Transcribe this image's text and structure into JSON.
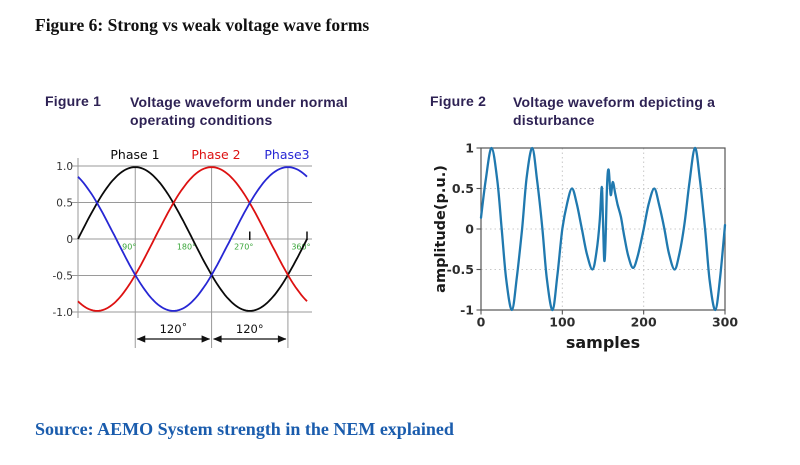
{
  "page": {
    "title": "Figure 6: Strong vs weak voltage wave forms",
    "title_color": "#111111",
    "source": "Source: AEMO System strength in the NEM explained",
    "source_color": "#1a5cad",
    "background": "#ffffff"
  },
  "chart_data": [
    {
      "type": "line",
      "figure_label": "Figure 1",
      "title_lines": [
        "Voltage waveform under normal",
        "operating conditions"
      ],
      "header_color": "#2e2254",
      "x_unit": "degrees",
      "xlim": [
        0,
        360
      ],
      "ylim": [
        -1.0,
        1.0
      ],
      "grid": true,
      "grid_color": "#9a9a9a",
      "tick_label_color": "#333333",
      "xtick_color": "#3aa63a",
      "yticks": [
        {
          "label": "1.0",
          "value": 1.0
        },
        {
          "label": "0.5",
          "value": 0.5
        },
        {
          "label": "0",
          "value": 0
        },
        {
          "label": "-0.5",
          "value": -0.5
        },
        {
          "label": "-1.0",
          "value": -1.0
        }
      ],
      "xticks": [
        {
          "label": "90°",
          "value": 90
        },
        {
          "label": "180°",
          "value": 180
        },
        {
          "label": "270°",
          "value": 270
        },
        {
          "label": "360°",
          "value": 360
        }
      ],
      "series": [
        {
          "name": "Phase 1",
          "color": "#0a0a0a",
          "function": "sin",
          "phase_deg": 0,
          "amplitude": 1,
          "label_at_deg": 90
        },
        {
          "name": "Phase 2",
          "color": "#dd1111",
          "function": "sin",
          "phase_deg": -120,
          "amplitude": 1,
          "label_at_deg": 215
        },
        {
          "name": "Phase3",
          "color": "#2727d4",
          "function": "sin",
          "phase_deg": 120,
          "amplitude": 1,
          "label_at_deg": 330
        }
      ],
      "annotations": {
        "peak_marker_lines_deg": [
          90,
          210,
          330
        ],
        "axis_tick_marks_deg": [
          270,
          360
        ],
        "spans": [
          {
            "from_deg": 90,
            "to_deg": 210,
            "label": "120˚"
          },
          {
            "from_deg": 210,
            "to_deg": 330,
            "label": "120°"
          }
        ]
      }
    },
    {
      "type": "line",
      "figure_label": "Figure 2",
      "title_lines": [
        "Voltage waveform depicting a",
        "disturbance"
      ],
      "header_color": "#2e2254",
      "xlabel": "samples",
      "ylabel": "amplitude(p.u.)",
      "xlim": [
        0,
        300
      ],
      "ylim": [
        -1,
        1
      ],
      "grid": "dotted",
      "grid_color": "#c8c8c8",
      "box_color": "#555555",
      "tick_label_color": "#2e2e2e",
      "line_color": "#2079af",
      "yticks": [
        {
          "label": "1",
          "value": 1
        },
        {
          "label": "0.5",
          "value": 0.5
        },
        {
          "label": "0",
          "value": 0
        },
        {
          "label": "-0.5",
          "value": -0.5
        },
        {
          "label": "-1",
          "value": -1
        }
      ],
      "xticks": [
        {
          "label": "0",
          "value": 0
        },
        {
          "label": "100",
          "value": 100
        },
        {
          "label": "200",
          "value": 200
        },
        {
          "label": "300",
          "value": 300
        }
      ],
      "series": [
        {
          "name": "voltage",
          "color": "#2079af",
          "points": [
            [
              0,
              0.14
            ],
            [
              6,
              0.62
            ],
            [
              13,
              1
            ],
            [
              20,
              0.6
            ],
            [
              25.5,
              0
            ],
            [
              31,
              -0.62
            ],
            [
              38,
              -1
            ],
            [
              44,
              -0.6
            ],
            [
              50.5,
              0
            ],
            [
              56,
              0.62
            ],
            [
              63,
              1
            ],
            [
              69,
              0.6
            ],
            [
              75.5,
              0
            ],
            [
              81,
              -0.62
            ],
            [
              88,
              -1
            ],
            [
              94,
              -0.56
            ],
            [
              100,
              0
            ],
            [
              106,
              0.32
            ],
            [
              112,
              0.5
            ],
            [
              118,
              0.3
            ],
            [
              124,
              0
            ],
            [
              130,
              -0.3
            ],
            [
              137,
              -0.5
            ],
            [
              142,
              -0.28
            ],
            [
              146,
              0.1
            ],
            [
              148.5,
              0.52
            ],
            [
              150,
              0.1
            ],
            [
              151.5,
              -0.38
            ],
            [
              153,
              -0.2
            ],
            [
              155,
              0.55
            ],
            [
              157,
              0.73
            ],
            [
              159.5,
              0.42
            ],
            [
              162,
              0.58
            ],
            [
              165,
              0.44
            ],
            [
              168,
              0.3
            ],
            [
              172,
              0.15
            ],
            [
              176,
              -0.08
            ],
            [
              181,
              -0.33
            ],
            [
              187,
              -0.48
            ],
            [
              193,
              -0.32
            ],
            [
              200,
              0
            ],
            [
              206,
              0.3
            ],
            [
              213,
              0.5
            ],
            [
              219,
              0.3
            ],
            [
              225.5,
              0
            ],
            [
              231,
              -0.3
            ],
            [
              238,
              -0.5
            ],
            [
              244,
              -0.3
            ],
            [
              250,
              0.05
            ],
            [
              256,
              0.55
            ],
            [
              263,
              1
            ],
            [
              269,
              0.62
            ],
            [
              275.5,
              0
            ],
            [
              281,
              -0.62
            ],
            [
              288,
              -1
            ],
            [
              294,
              -0.6
            ],
            [
              300,
              0.05
            ]
          ]
        }
      ]
    }
  ]
}
